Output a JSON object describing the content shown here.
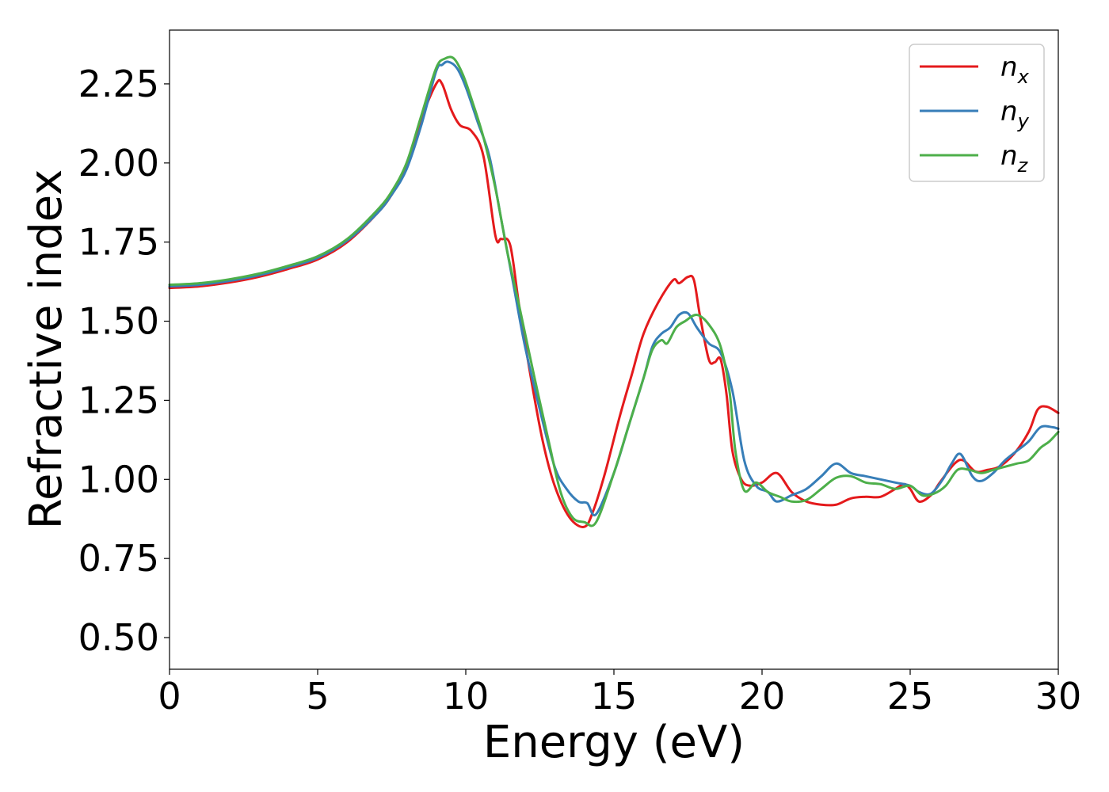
{
  "chart_data": {
    "type": "line",
    "title": "",
    "xlabel": "Energy (eV)",
    "ylabel": "Refractive index",
    "xlim": [
      0,
      30
    ],
    "ylim": [
      0.4,
      2.42
    ],
    "xticks": [
      0,
      5,
      10,
      15,
      20,
      25,
      30
    ],
    "xtick_labels": [
      "0",
      "5",
      "10",
      "15",
      "20",
      "25",
      "30"
    ],
    "yticks": [
      0.5,
      0.75,
      1.0,
      1.25,
      1.5,
      1.75,
      2.0,
      2.25
    ],
    "ytick_labels": [
      "0.50",
      "0.75",
      "1.00",
      "1.25",
      "1.50",
      "1.75",
      "2.00",
      "2.25"
    ],
    "grid": false,
    "legend_position": "top-right",
    "series": [
      {
        "name": "n",
        "subscript": "x",
        "color": "#e41a1c",
        "x": [
          0,
          1,
          2,
          3,
          4,
          5,
          6,
          7,
          7.5,
          8,
          8.5,
          9,
          9.2,
          9.5,
          9.8,
          10.2,
          10.6,
          11,
          11.2,
          11.5,
          11.8,
          12.2,
          12.6,
          13,
          13.5,
          14,
          14.3,
          14.7,
          15.2,
          15.6,
          16,
          16.5,
          17,
          17.2,
          17.5,
          17.7,
          17.9,
          18.2,
          18.4,
          18.6,
          18.8,
          19,
          19.3,
          19.6,
          20,
          20.5,
          21,
          21.5,
          22,
          22.5,
          23,
          23.5,
          24,
          24.5,
          24.8,
          25,
          25.3,
          25.7,
          26,
          26.5,
          26.8,
          27.2,
          27.6,
          28,
          28.5,
          29,
          29.3,
          29.6,
          30
        ],
        "y": [
          1.605,
          1.61,
          1.622,
          1.64,
          1.665,
          1.695,
          1.75,
          1.84,
          1.9,
          1.99,
          2.14,
          2.25,
          2.25,
          2.17,
          2.12,
          2.1,
          2.02,
          1.77,
          1.76,
          1.74,
          1.55,
          1.32,
          1.12,
          0.98,
          0.88,
          0.85,
          0.9,
          1.02,
          1.2,
          1.33,
          1.46,
          1.56,
          1.63,
          1.62,
          1.64,
          1.63,
          1.52,
          1.38,
          1.37,
          1.38,
          1.27,
          1.09,
          1.0,
          0.98,
          0.99,
          1.02,
          0.96,
          0.93,
          0.92,
          0.92,
          0.94,
          0.945,
          0.945,
          0.97,
          0.985,
          0.97,
          0.93,
          0.95,
          0.99,
          1.05,
          1.06,
          1.025,
          1.03,
          1.04,
          1.08,
          1.15,
          1.22,
          1.23,
          1.21
        ]
      },
      {
        "name": "n",
        "subscript": "y",
        "color": "#377eb8",
        "x": [
          0,
          1,
          2,
          3,
          4,
          5,
          6,
          7,
          7.5,
          8,
          8.5,
          9,
          9.2,
          9.4,
          9.7,
          10,
          10.4,
          10.8,
          11.2,
          11.6,
          12,
          12.5,
          13,
          13.4,
          13.8,
          14.1,
          14.4,
          15,
          15.5,
          16,
          16.3,
          16.6,
          16.9,
          17.2,
          17.5,
          17.8,
          18.2,
          18.6,
          19,
          19.4,
          19.8,
          20.2,
          20.5,
          21,
          21.5,
          22,
          22.5,
          23,
          23.5,
          24,
          24.5,
          25,
          25.3,
          25.7,
          26.1,
          26.4,
          26.7,
          27.1,
          27.4,
          27.8,
          28.2,
          28.6,
          29,
          29.4,
          29.8,
          30
        ],
        "y": [
          1.61,
          1.615,
          1.627,
          1.645,
          1.67,
          1.7,
          1.755,
          1.84,
          1.9,
          1.98,
          2.12,
          2.29,
          2.31,
          2.32,
          2.3,
          2.24,
          2.13,
          2.02,
          1.82,
          1.62,
          1.42,
          1.22,
          1.04,
          0.97,
          0.93,
          0.925,
          0.89,
          1.02,
          1.17,
          1.32,
          1.42,
          1.46,
          1.48,
          1.52,
          1.525,
          1.48,
          1.43,
          1.4,
          1.28,
          1.06,
          0.98,
          0.96,
          0.93,
          0.95,
          0.97,
          1.01,
          1.05,
          1.02,
          1.01,
          1.0,
          0.99,
          0.98,
          0.96,
          0.955,
          1.0,
          1.05,
          1.08,
          1.01,
          0.995,
          1.02,
          1.06,
          1.09,
          1.12,
          1.165,
          1.165,
          1.16
        ]
      },
      {
        "name": "n",
        "subscript": "z",
        "color": "#4daf4a",
        "x": [
          0,
          1,
          2,
          3,
          4,
          5,
          6,
          7,
          7.5,
          8,
          8.5,
          9,
          9.3,
          9.6,
          9.9,
          10.2,
          10.6,
          11,
          11.4,
          11.8,
          12.3,
          12.8,
          13.2,
          13.6,
          14,
          14.4,
          15,
          15.5,
          16,
          16.3,
          16.6,
          16.8,
          17.1,
          17.4,
          17.8,
          18.2,
          18.6,
          18.9,
          19.1,
          19.4,
          19.8,
          20.2,
          20.6,
          21,
          21.5,
          22,
          22.5,
          23,
          23.5,
          24,
          24.5,
          25,
          25.4,
          25.8,
          26.2,
          26.6,
          27,
          27.4,
          27.8,
          28.2,
          28.6,
          29,
          29.4,
          29.7,
          30
        ],
        "y": [
          1.615,
          1.62,
          1.632,
          1.65,
          1.675,
          1.705,
          1.76,
          1.85,
          1.91,
          2.0,
          2.15,
          2.3,
          2.33,
          2.33,
          2.28,
          2.2,
          2.08,
          1.92,
          1.72,
          1.55,
          1.33,
          1.12,
          0.96,
          0.88,
          0.865,
          0.865,
          1.02,
          1.17,
          1.32,
          1.41,
          1.44,
          1.43,
          1.48,
          1.5,
          1.52,
          1.49,
          1.42,
          1.28,
          1.09,
          0.965,
          0.99,
          0.96,
          0.945,
          0.93,
          0.935,
          0.97,
          1.005,
          1.01,
          0.99,
          0.985,
          0.97,
          0.98,
          0.95,
          0.955,
          0.98,
          1.03,
          1.03,
          1.02,
          1.03,
          1.04,
          1.05,
          1.06,
          1.1,
          1.12,
          1.15
        ]
      }
    ]
  }
}
